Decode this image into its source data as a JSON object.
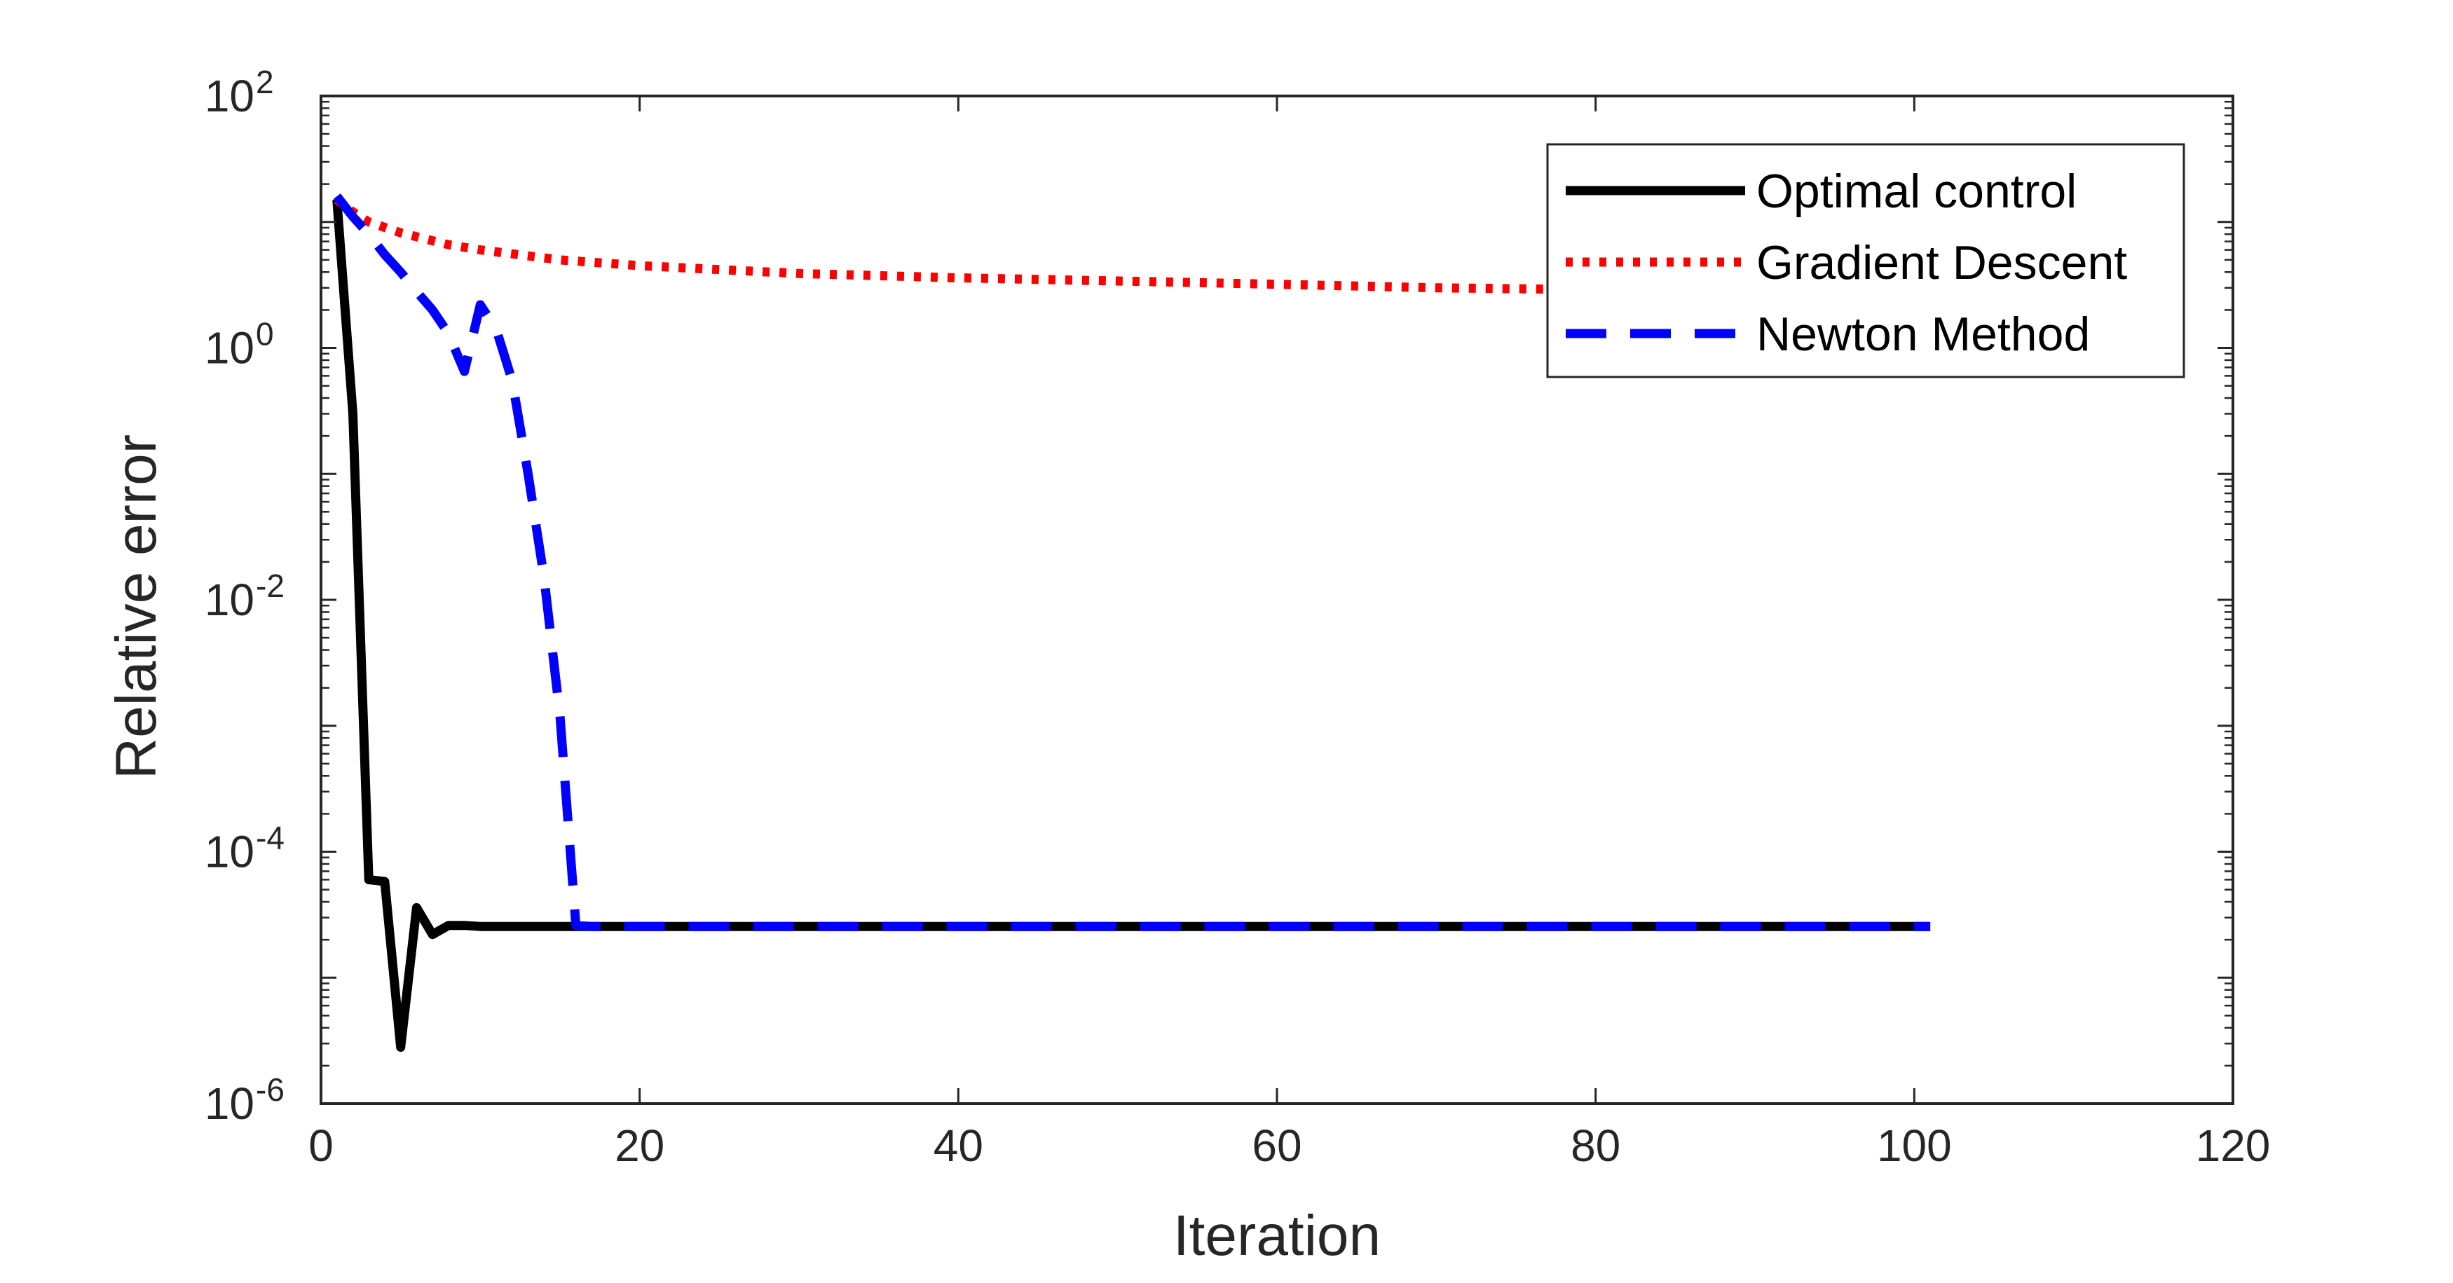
{
  "chart_data": {
    "type": "line",
    "title": "",
    "xlabel": "Iteration",
    "ylabel": "Relative error",
    "xlim": [
      0,
      120
    ],
    "ylim": [
      1e-06,
      100
    ],
    "yscale": "log",
    "grid": false,
    "legend_position": "top-right",
    "x_ticks": [
      0,
      20,
      40,
      60,
      80,
      100,
      120
    ],
    "x_tick_labels": [
      "0",
      "20",
      "40",
      "60",
      "80",
      "100",
      "120"
    ],
    "y_ticks": [
      {
        "value": 1e-06,
        "base": "10",
        "exp": "-6"
      },
      {
        "value": 0.0001,
        "base": "10",
        "exp": "-4"
      },
      {
        "value": 0.01,
        "base": "10",
        "exp": "-2"
      },
      {
        "value": 1,
        "base": "10",
        "exp": "0"
      },
      {
        "value": 100,
        "base": "10",
        "exp": "2"
      }
    ],
    "series": [
      {
        "name": "Optimal control",
        "color": "#000000",
        "dash": "solid",
        "x": [
          1,
          2,
          3,
          4,
          5,
          6,
          7,
          8,
          9,
          10,
          12,
          15,
          20,
          40,
          60,
          80,
          101
        ],
        "y": [
          15,
          0.3,
          6e-05,
          5.8e-05,
          2.8e-06,
          3.6e-05,
          2.2e-05,
          2.6e-05,
          2.6e-05,
          2.55e-05,
          2.55e-05,
          2.55e-05,
          2.55e-05,
          2.55e-05,
          2.55e-05,
          2.55e-05,
          2.55e-05
        ]
      },
      {
        "name": "Gradient Descent",
        "color": "#ff0000",
        "dash": "dotted",
        "x": [
          1,
          2,
          3,
          5,
          8,
          10,
          15,
          20,
          30,
          40,
          50,
          60,
          70,
          80,
          90,
          101
        ],
        "y": [
          15,
          12,
          10,
          8.2,
          6.6,
          6.0,
          5.0,
          4.5,
          3.9,
          3.6,
          3.4,
          3.2,
          3.0,
          2.9,
          2.8,
          2.7
        ]
      },
      {
        "name": "Newton Method",
        "color": "#0000ff",
        "dash": "dashed",
        "x": [
          1,
          2,
          3,
          4,
          5,
          6,
          7,
          8,
          9,
          10,
          11,
          12,
          13,
          14,
          15,
          16,
          17,
          20,
          40,
          60,
          80,
          101
        ],
        "y": [
          16,
          11,
          8,
          5.5,
          4,
          2.8,
          2.0,
          1.3,
          0.65,
          2.2,
          1.4,
          0.55,
          0.1,
          0.015,
          0.0012,
          2.6e-05,
          2.55e-05,
          2.55e-05,
          2.55e-05,
          2.55e-05,
          2.55e-05,
          2.55e-05
        ]
      }
    ]
  }
}
